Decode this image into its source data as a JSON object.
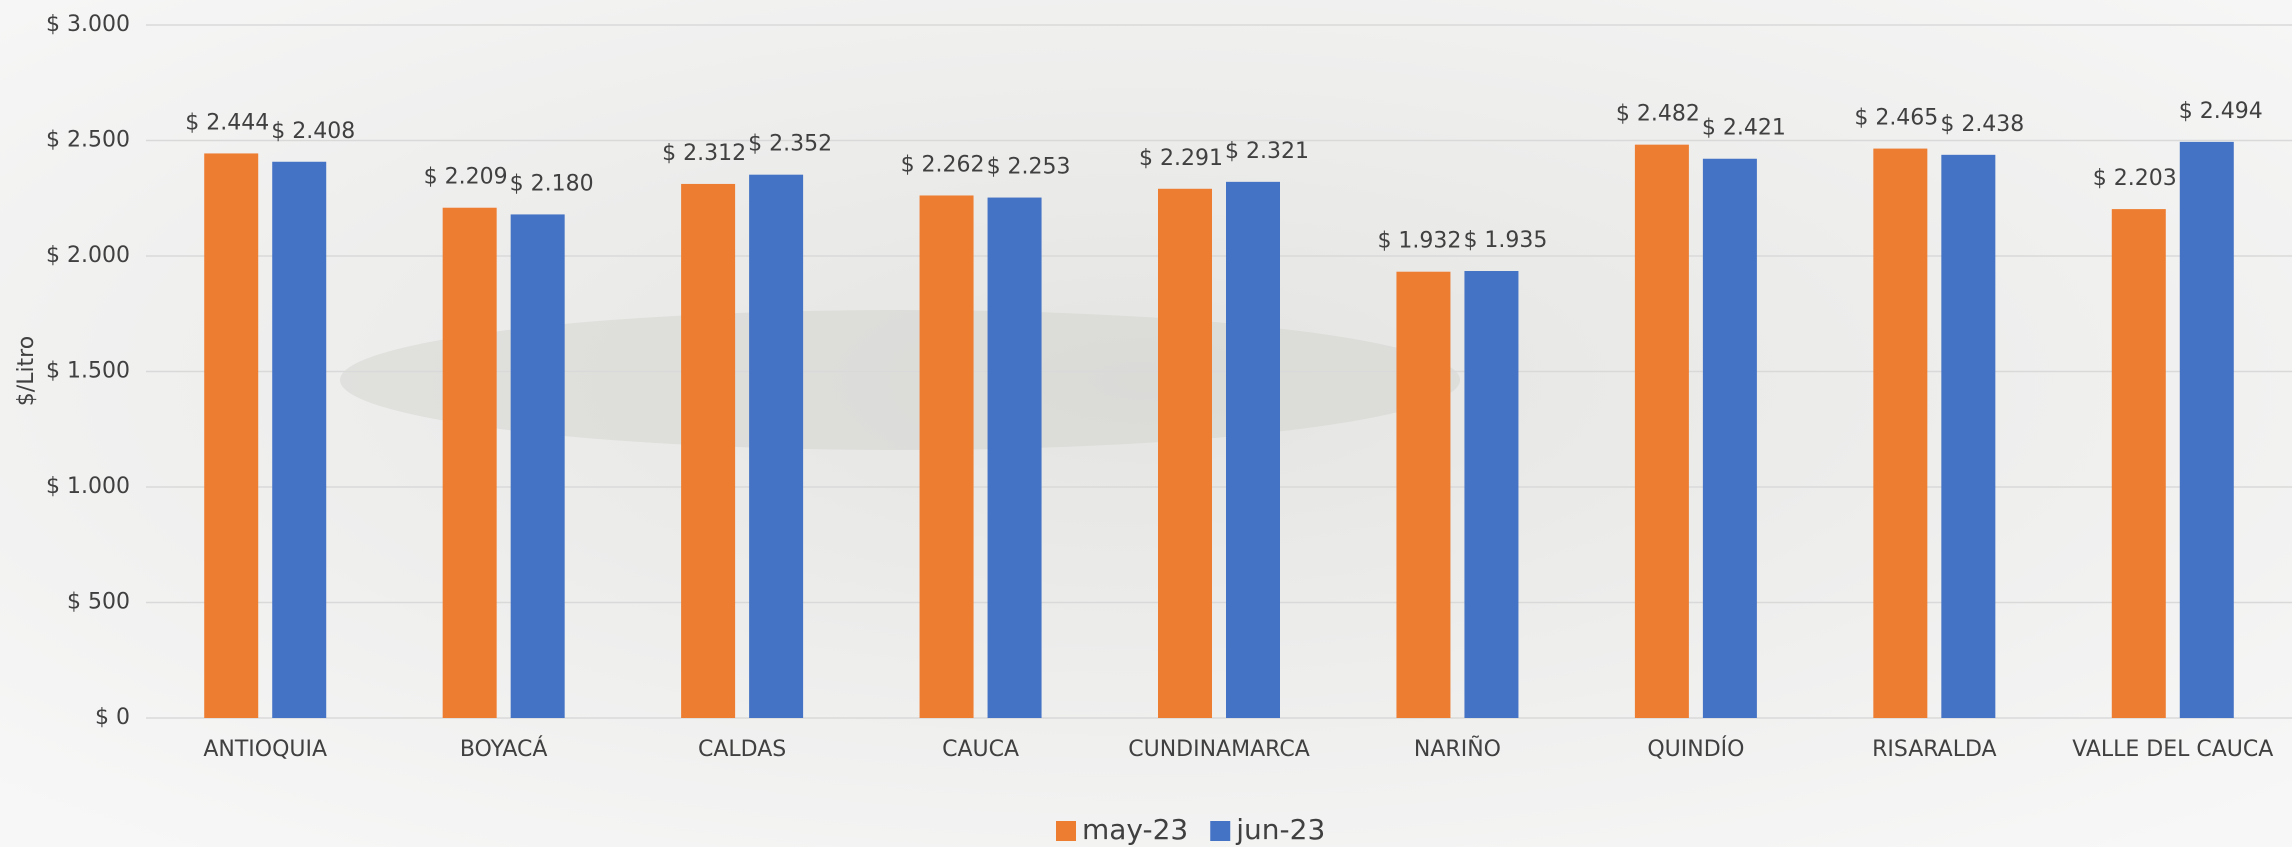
{
  "chart_data": {
    "type": "bar",
    "y_label": "$/Litro",
    "categories": [
      "ANTIOQUIA",
      "BOYACÁ",
      "CALDAS",
      "CAUCA",
      "CUNDINAMARCA",
      "NARIÑO",
      "QUINDÍO",
      "RISARALDA",
      "VALLE DEL CAUCA"
    ],
    "series": [
      {
        "name": "may-23",
        "color": "#ed7d31",
        "values": [
          2444,
          2209,
          2312,
          2262,
          2291,
          1932,
          2482,
          2465,
          2203
        ],
        "value_labels": [
          "$ 2.444",
          "$ 2.209",
          "$ 2.312",
          "$ 2.262",
          "$ 2.291",
          "$ 1.932",
          "$ 2.482",
          "$ 2.465",
          "$ 2.203"
        ]
      },
      {
        "name": "jun-23",
        "color": "#4472c4",
        "values": [
          2408,
          2180,
          2352,
          2253,
          2321,
          1935,
          2421,
          2438,
          2494
        ],
        "value_labels": [
          "$ 2.408",
          "$ 2.180",
          "$ 2.352",
          "$ 2.253",
          "$ 2.321",
          "$ 1.935",
          "$ 2.421",
          "$ 2.438",
          "$ 2.494"
        ]
      }
    ],
    "ylim": [
      0,
      3000
    ],
    "yticks": [
      {
        "value": 0,
        "label": "$ 0"
      },
      {
        "value": 500,
        "label": "$ 500"
      },
      {
        "value": 1000,
        "label": "$ 1.000"
      },
      {
        "value": 1500,
        "label": "$ 1.500"
      },
      {
        "value": 2000,
        "label": "$ 2.000"
      },
      {
        "value": 2500,
        "label": "$ 2.500"
      },
      {
        "value": 3000,
        "label": "$ 3.000"
      }
    ],
    "grid": true,
    "legend": "bottom"
  }
}
